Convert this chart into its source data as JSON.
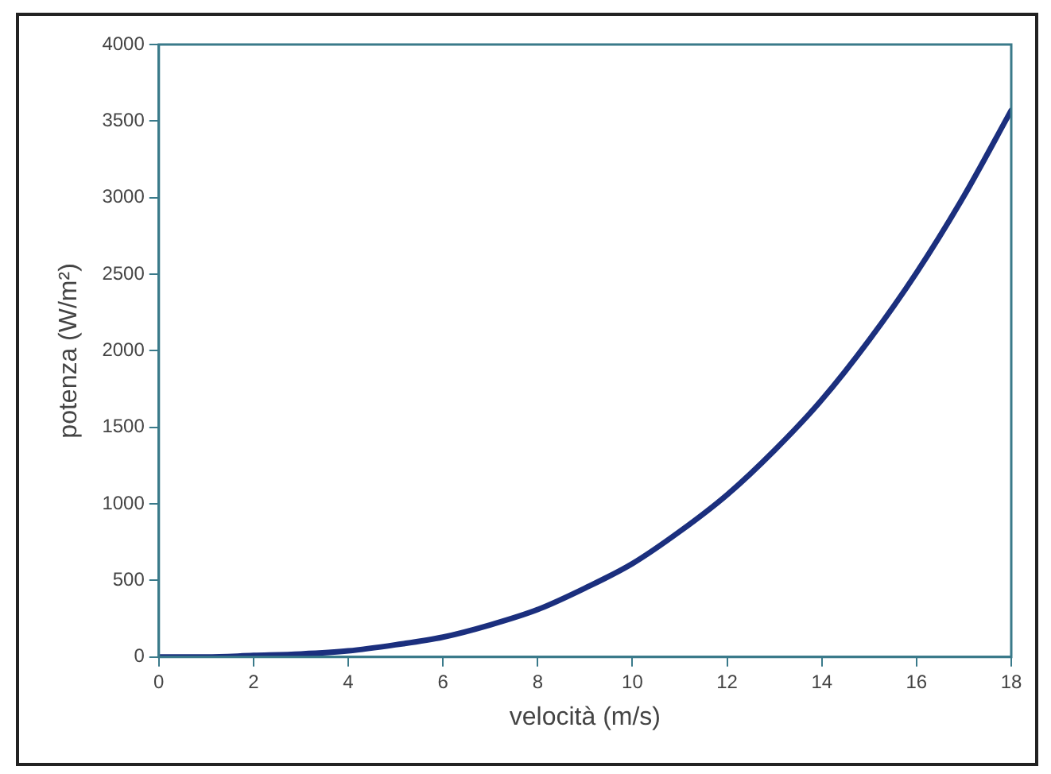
{
  "chart_data": {
    "type": "line",
    "xlabel": "velocità (m/s)",
    "ylabel": "potenza (W/m²)",
    "x": [
      0,
      1,
      2,
      3,
      4,
      5,
      6,
      7,
      8,
      9,
      10,
      11,
      12,
      13,
      14,
      15,
      16,
      17,
      18
    ],
    "series": [
      {
        "color": "#1b2f7e",
        "values": [
          0,
          0,
          10,
          20,
          40,
          80,
          130,
          210,
          310,
          450,
          610,
          820,
          1060,
          1350,
          1680,
          2070,
          2510,
          3010,
          3570
        ]
      }
    ],
    "xlim": [
      0,
      18
    ],
    "xticks": [
      0,
      2,
      4,
      6,
      8,
      10,
      12,
      14,
      16,
      18
    ],
    "ylim": [
      0,
      4000
    ],
    "yticks": [
      0,
      500,
      1000,
      1500,
      2000,
      2500,
      3000,
      3500,
      4000
    ],
    "grid": false,
    "legend": false,
    "marker": "none",
    "line_style": "solid"
  }
}
